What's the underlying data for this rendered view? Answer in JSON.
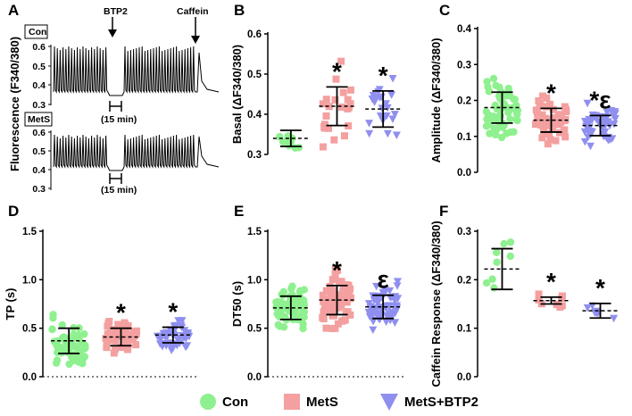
{
  "colors": {
    "con": "#8ff08f",
    "mets": "#f4a0a0",
    "metsbtp2": "#8f8ff0",
    "axis": "#000000"
  },
  "legend": [
    {
      "key": "con",
      "label": "Con",
      "marker": "circle"
    },
    {
      "key": "mets",
      "label": "MetS",
      "marker": "square"
    },
    {
      "key": "metsbtp2",
      "label": "MetS+BTP2",
      "marker": "triangle"
    }
  ],
  "panelA": {
    "letter": "A",
    "ylabel": "Fluorescence (F340/380)",
    "con_label": "Con",
    "mets_label": "MetS",
    "btp2_label": "BTP2",
    "caffein_label": "Caffein",
    "interval_label": "(15 min)",
    "con_ticks": [
      "0.6",
      "0.5",
      "0.4",
      "0.3"
    ],
    "mets_ticks": [
      "0.6",
      "0.5",
      "0.4",
      "0.3"
    ]
  },
  "chart_data": [
    {
      "panel": "B",
      "type": "scatter",
      "ylabel": "Basal (ΔF340/380)",
      "ylim": [
        0.3,
        0.6
      ],
      "yticks": [
        "0.3",
        "0.4",
        "0.5",
        "0.6"
      ],
      "groups": [
        {
          "key": "con",
          "mean": 0.34,
          "sd": 0.02,
          "n": 12,
          "sig": ""
        },
        {
          "key": "mets",
          "mean": 0.42,
          "sd": 0.048,
          "n": 22,
          "sig": "*"
        },
        {
          "key": "metsbtp2",
          "mean": 0.413,
          "sd": 0.045,
          "n": 24,
          "sig": "*"
        }
      ]
    },
    {
      "panel": "C",
      "type": "scatter",
      "ylabel": "Amplitude (ΔF340/380)",
      "ylim": [
        0.0,
        0.4
      ],
      "yticks": [
        "0.0",
        "0.1",
        "0.2",
        "0.3",
        "0.4"
      ],
      "groups": [
        {
          "key": "con",
          "mean": 0.18,
          "sd": 0.043,
          "n": 60,
          "sig": ""
        },
        {
          "key": "mets",
          "mean": 0.145,
          "sd": 0.033,
          "n": 50,
          "sig": "*"
        },
        {
          "key": "metsbtp2",
          "mean": 0.13,
          "sd": 0.028,
          "n": 50,
          "sig": "*ε"
        }
      ]
    },
    {
      "panel": "D",
      "type": "scatter",
      "ylabel": "TP (s)",
      "ylim": [
        0.0,
        1.5
      ],
      "yticks": [
        "0.0",
        "0.5",
        "1.0",
        "1.5"
      ],
      "groups": [
        {
          "key": "con",
          "mean": 0.37,
          "sd": 0.13,
          "n": 60,
          "sig": ""
        },
        {
          "key": "mets",
          "mean": 0.41,
          "sd": 0.09,
          "n": 50,
          "sig": "*"
        },
        {
          "key": "metsbtp2",
          "mean": 0.43,
          "sd": 0.08,
          "n": 50,
          "sig": "*"
        }
      ]
    },
    {
      "panel": "E",
      "type": "scatter",
      "ylabel": "DT50 (s)",
      "ylim": [
        0.0,
        1.5
      ],
      "yticks": [
        "0.0",
        "0.5",
        "1.0",
        "1.5"
      ],
      "groups": [
        {
          "key": "con",
          "mean": 0.71,
          "sd": 0.12,
          "n": 70,
          "sig": ""
        },
        {
          "key": "mets",
          "mean": 0.79,
          "sd": 0.15,
          "n": 70,
          "sig": "*"
        },
        {
          "key": "metsbtp2",
          "mean": 0.72,
          "sd": 0.12,
          "n": 70,
          "sig": "ε"
        }
      ]
    },
    {
      "panel": "F",
      "type": "scatter",
      "ylabel": "Caffein Response (ΔF340/380)",
      "ylim": [
        0.0,
        0.3
      ],
      "yticks": [
        "0.0",
        "0.1",
        "0.2",
        "0.3"
      ],
      "groups": [
        {
          "key": "con",
          "mean": 0.222,
          "sd": 0.042,
          "n": 8,
          "sig": ""
        },
        {
          "key": "mets",
          "mean": 0.157,
          "sd": 0.007,
          "n": 8,
          "sig": "*"
        },
        {
          "key": "metsbtp2",
          "mean": 0.136,
          "sd": 0.015,
          "n": 7,
          "sig": "*"
        }
      ]
    }
  ]
}
